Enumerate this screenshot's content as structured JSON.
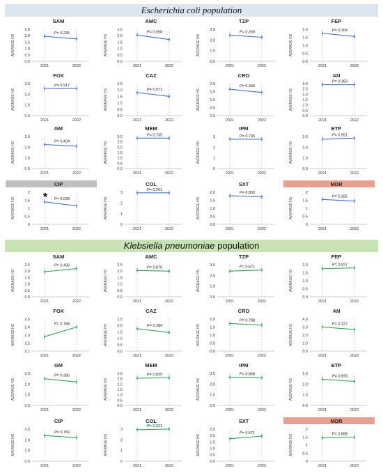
{
  "sections": {
    "ecoli_title": "Escherichia coli population",
    "kleb_title_italic": "Klebsiella pneumoniae",
    "kleb_title_rest": " population"
  },
  "common": {
    "ylabel": "AVERAGE HS",
    "x_categories": [
      "2021",
      "2022"
    ],
    "p_prefix": "P= "
  },
  "colors": {
    "ecoli_line": "#4472c4",
    "kleb_line": "#2e9e5b",
    "cip_highlight": "#bfbfbf",
    "mdr_highlight": "#e8a090",
    "ecoli_banner": "#dce6f1",
    "kleb_banner": "#c9e2b3"
  },
  "chart_data": [
    {
      "population": "Escherichia coli",
      "title": "SAM",
      "type": "line",
      "x": [
        "2021",
        "2022"
      ],
      "values": [
        1.95,
        1.75
      ],
      "p": "0.235",
      "ylim": [
        0,
        2.5
      ],
      "yticks": [
        "0.0",
        "0.5",
        "1.0",
        "1.5",
        "2.0",
        "2.5"
      ]
    },
    {
      "population": "Escherichia coli",
      "title": "AMC",
      "type": "line",
      "x": [
        "2021",
        "2022"
      ],
      "values": [
        2.05,
        1.7
      ],
      "p": "0.058",
      "ylim": [
        0,
        2.5
      ],
      "yticks": [
        "0.0",
        "0.5",
        "1.0",
        "1.5",
        "2.0",
        "2.5"
      ]
    },
    {
      "population": "Escherichia coli",
      "title": "TZP",
      "type": "line",
      "x": [
        "2021",
        "2022"
      ],
      "values": [
        2.45,
        2.25
      ],
      "p": "0.269",
      "ylim": [
        0,
        3.0
      ],
      "yticks": [
        "0.0",
        "1.0",
        "2.0",
        "3.0"
      ]
    },
    {
      "population": "Escherichia coli",
      "title": "FEP",
      "type": "line",
      "x": [
        "2021",
        "2022"
      ],
      "values": [
        1.75,
        1.55
      ],
      "p": "0.304",
      "ylim": [
        0,
        2.0
      ],
      "yticks": [
        "0.0",
        "0.5",
        "1.0",
        "1.5",
        "2.0"
      ]
    },
    {
      "population": "Escherichia coli",
      "title": "FOX",
      "type": "line",
      "x": [
        "2021",
        "2022"
      ],
      "values": [
        2.55,
        2.55
      ],
      "p": "0.917",
      "ylim": [
        0,
        3.0
      ],
      "yticks": [
        "0.0",
        "1.0",
        "2.0",
        "3.0"
      ]
    },
    {
      "population": "Escherichia coli",
      "title": "CAZ",
      "type": "line",
      "x": [
        "2021",
        "2022"
      ],
      "values": [
        1.8,
        1.5
      ],
      "p": "0.071",
      "ylim": [
        0,
        2.5
      ],
      "yticks": [
        "0.0",
        "0.5",
        "1.0",
        "1.5",
        "2.0",
        "2.5"
      ]
    },
    {
      "population": "Escherichia coli",
      "title": "CRO",
      "type": "line",
      "x": [
        "2021",
        "2022"
      ],
      "values": [
        1.65,
        1.45
      ],
      "p": "0.340",
      "ylim": [
        0,
        2.0
      ],
      "yticks": [
        "0.0",
        "0.5",
        "1.0",
        "1.5",
        "2.0"
      ]
    },
    {
      "population": "Escherichia coli",
      "title": "AN",
      "type": "line",
      "x": [
        "2021",
        "2022"
      ],
      "values": [
        2.9,
        2.9
      ],
      "p": "0.369",
      "ylim": [
        0,
        3.0
      ],
      "yticks": [
        "0.0",
        "0.5",
        "1.0",
        "1.5",
        "2.0",
        "2.5",
        "3.0"
      ]
    },
    {
      "population": "Escherichia coli",
      "title": "GM",
      "type": "line",
      "x": [
        "2021",
        "2022"
      ],
      "values": [
        2.25,
        2.1
      ],
      "p": "0.404",
      "ylim": [
        0,
        3.0
      ],
      "yticks": [
        "0.0",
        "1.0",
        "2.0",
        "3.0"
      ]
    },
    {
      "population": "Escherichia coli",
      "title": "MEM",
      "type": "line",
      "x": [
        "2021",
        "2022"
      ],
      "values": [
        2.85,
        2.85
      ],
      "p": "0.735",
      "ylim": [
        0,
        3.0
      ],
      "yticks": [
        "0.0",
        "0.5",
        "1.0",
        "1.5",
        "2.0",
        "2.5",
        "3.0"
      ]
    },
    {
      "population": "Escherichia coli",
      "title": "IPM",
      "type": "line",
      "x": [
        "2021",
        "2022"
      ],
      "values": [
        2.75,
        2.75
      ],
      "p": "0.735",
      "ylim": [
        0,
        3
      ],
      "yticks": [
        "0",
        "1",
        "2",
        "3"
      ]
    },
    {
      "population": "Escherichia coli",
      "title": "ETP",
      "type": "line",
      "x": [
        "2021",
        "2022"
      ],
      "values": [
        2.75,
        2.85
      ],
      "p": "0.551",
      "ylim": [
        0,
        3.0
      ],
      "yticks": [
        "0.0",
        "1.0",
        "2.0",
        "3.0"
      ]
    },
    {
      "population": "Escherichia coli",
      "title": "CIP",
      "type": "line",
      "x": [
        "2021",
        "2022"
      ],
      "values": [
        1.4,
        1.15
      ],
      "p": "0.039",
      "significant": true,
      "highlight": "cip",
      "ylim": [
        0,
        2
      ],
      "yticks": [
        "0",
        "0.5",
        "1",
        "1.5",
        "2"
      ]
    },
    {
      "population": "Escherichia coli",
      "title": "COL",
      "type": "line",
      "x": [
        "2021",
        "2022"
      ],
      "values": [
        2.95,
        2.95
      ],
      "p": "0.201",
      "ylim": [
        0,
        3
      ],
      "yticks": [
        "0",
        "1",
        "2",
        "3"
      ]
    },
    {
      "population": "Escherichia coli",
      "title": "SXT",
      "type": "line",
      "x": [
        "2021",
        "2022"
      ],
      "values": [
        1.78,
        1.72
      ],
      "p": "0.800",
      "ylim": [
        0,
        2.0
      ],
      "yticks": [
        "0.0",
        "0.5",
        "1.0",
        "1.5",
        "2.0"
      ]
    },
    {
      "population": "Escherichia coli",
      "title": "MDR",
      "type": "line",
      "x": [
        "2021",
        "2022"
      ],
      "values": [
        1.55,
        1.45
      ],
      "p": "0.285",
      "highlight": "mdr",
      "ylim": [
        0,
        2
      ],
      "yticks": [
        "0",
        "0.5",
        "1",
        "1.5",
        "2"
      ]
    },
    {
      "population": "Klebsiella pneumoniae",
      "title": "SAM",
      "type": "line",
      "x": [
        "2021",
        "2022"
      ],
      "values": [
        1.95,
        2.2
      ],
      "p": "0.436",
      "ylim": [
        0,
        2.5
      ],
      "yticks": [
        "0.0",
        "0.5",
        "1.0",
        "1.5",
        "2.0",
        "2.5"
      ]
    },
    {
      "population": "Klebsiella pneumoniae",
      "title": "AMC",
      "type": "line",
      "x": [
        "2021",
        "2022"
      ],
      "values": [
        2.05,
        2.0
      ],
      "p": "0.879",
      "ylim": [
        0,
        2.5
      ],
      "yticks": [
        "0.0",
        "0.5",
        "1.0",
        "1.5",
        "2.0",
        "2.5"
      ]
    },
    {
      "population": "Klebsiella pneumoniae",
      "title": "TZP",
      "type": "line",
      "x": [
        "2021",
        "2022"
      ],
      "values": [
        2.4,
        2.5
      ],
      "p": "0.671",
      "ylim": [
        0,
        3.0
      ],
      "yticks": [
        "0.0",
        "1.0",
        "2.0",
        "3.0"
      ]
    },
    {
      "population": "Klebsiella pneumoniae",
      "title": "FEP",
      "type": "line",
      "x": [
        "2021",
        "2022"
      ],
      "values": [
        1.75,
        1.8
      ],
      "p": "0.927",
      "ylim": [
        0,
        2.0
      ],
      "yticks": [
        "0.0",
        "0.5",
        "1.0",
        "1.5",
        "2.0"
      ]
    },
    {
      "population": "Klebsiella pneumoniae",
      "title": "FOX",
      "type": "line",
      "x": [
        "2021",
        "2022"
      ],
      "values": [
        2.28,
        2.4
      ],
      "p": "0.788",
      "ylim": [
        2.1,
        2.5
      ],
      "yticks": [
        "2.1",
        "2.2",
        "2.3",
        "2.4",
        "2.5"
      ]
    },
    {
      "population": "Klebsiella pneumoniae",
      "title": "CAZ",
      "type": "line",
      "x": [
        "2021",
        "2022"
      ],
      "values": [
        1.75,
        1.45
      ],
      "p": "0.284",
      "ylim": [
        0,
        2.5
      ],
      "yticks": [
        "0.0",
        "0.5",
        "1.0",
        "1.5",
        "2.0",
        "2.5"
      ]
    },
    {
      "population": "Klebsiella pneumoniae",
      "title": "CRO",
      "type": "line",
      "x": [
        "2021",
        "2022"
      ],
      "values": [
        1.72,
        1.62
      ],
      "p": "0.788",
      "ylim": [
        0,
        2.0
      ],
      "yticks": [
        "0.0",
        "0.5",
        "1.0",
        "1.5",
        "2.0"
      ]
    },
    {
      "population": "Klebsiella pneumoniae",
      "title": "AN",
      "type": "line",
      "x": [
        "2021",
        "2022"
      ],
      "values": [
        3.0,
        2.7
      ],
      "p": "0.127",
      "ylim": [
        0,
        4.0
      ],
      "yticks": [
        "0.0",
        "1.0",
        "2.0",
        "3.0",
        "4.0"
      ]
    },
    {
      "population": "Klebsiella pneumoniae",
      "title": "GM",
      "type": "line",
      "x": [
        "2021",
        "2022"
      ],
      "values": [
        2.5,
        2.2
      ],
      "p": "0.385",
      "ylim": [
        0,
        3.0
      ],
      "yticks": [
        "0.0",
        "1.0",
        "2.0",
        "3.0"
      ]
    },
    {
      "population": "Klebsiella pneumoniae",
      "title": "MEM",
      "type": "line",
      "x": [
        "2021",
        "2022"
      ],
      "values": [
        2.55,
        2.6
      ],
      "p": "0.839",
      "ylim": [
        0,
        3.0
      ],
      "yticks": [
        "0.0",
        "0.5",
        "1.0",
        "1.5",
        "2.0",
        "2.5",
        "3.0"
      ]
    },
    {
      "population": "Klebsiella pneumoniae",
      "title": "IPM",
      "type": "line",
      "x": [
        "2021",
        "2022"
      ],
      "values": [
        2.65,
        2.6
      ],
      "p": "0.868",
      "ylim": [
        0,
        3.0
      ],
      "yticks": [
        "0.0",
        "1.0",
        "2.0",
        "3.0"
      ]
    },
    {
      "population": "Klebsiella pneumoniae",
      "title": "ETP",
      "type": "line",
      "x": [
        "2021",
        "2022"
      ],
      "values": [
        2.45,
        2.25
      ],
      "p": "0.590",
      "ylim": [
        0,
        3.0
      ],
      "yticks": [
        "0.0",
        "1.0",
        "2.0",
        "3.0"
      ]
    },
    {
      "population": "Klebsiella pneumoniae",
      "title": "CIP",
      "type": "line",
      "x": [
        "2021",
        "2022"
      ],
      "values": [
        2.4,
        2.2
      ],
      "p": "0.766",
      "ylim": [
        0,
        3.0
      ],
      "yticks": [
        "0.0",
        "1.0",
        "2.0",
        "3.0"
      ]
    },
    {
      "population": "Klebsiella pneumoniae",
      "title": "COL",
      "type": "line",
      "x": [
        "2021",
        "2022"
      ],
      "values": [
        2.95,
        3.0
      ],
      "p": "0.221",
      "ylim": [
        0,
        3
      ],
      "yticks": [
        "0",
        "1",
        "2",
        "3"
      ]
    },
    {
      "population": "Klebsiella pneumoniae",
      "title": "SXT",
      "type": "line",
      "x": [
        "2021",
        "2022"
      ],
      "values": [
        1.75,
        1.95
      ],
      "p": "0.671",
      "ylim": [
        0,
        2.5
      ],
      "yticks": [
        "0.0",
        "0.5",
        "1.0",
        "1.5",
        "2.0",
        "2.5"
      ]
    },
    {
      "population": "Klebsiella pneumoniae",
      "title": "MDR",
      "type": "line",
      "x": [
        "2021",
        "2022"
      ],
      "values": [
        1.45,
        1.5
      ],
      "p": "0.888",
      "highlight": "mdr",
      "ylim": [
        0,
        2
      ],
      "yticks": [
        "0",
        "0.5",
        "1",
        "1.5",
        "2"
      ]
    }
  ]
}
